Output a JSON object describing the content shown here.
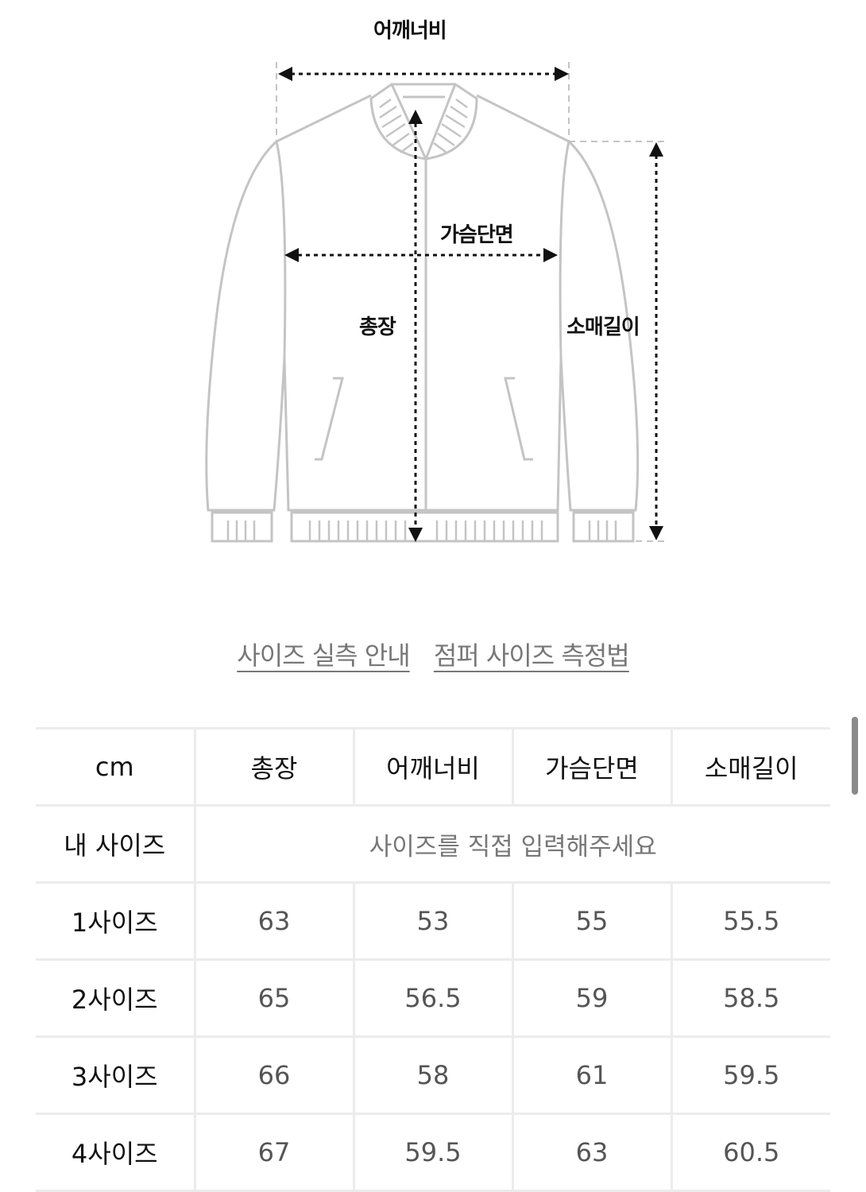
{
  "diagram": {
    "labels": {
      "shoulder": "어깨너비",
      "chest": "가슴단면",
      "length": "총장",
      "sleeve": "소매길이"
    },
    "line_color": "#c4c4c4",
    "arrow_color": "#111111"
  },
  "links": [
    {
      "label": "사이즈 실측 안내"
    },
    {
      "label": "점퍼 사이즈 측정법"
    }
  ],
  "table": {
    "headers": [
      "cm",
      "총장",
      "어깨너비",
      "가슴단면",
      "소매길이"
    ],
    "my_size": {
      "label": "내 사이즈",
      "placeholder": "사이즈를 직접 입력해주세요"
    },
    "rows": [
      {
        "size": "1사이즈",
        "values": [
          "63",
          "53",
          "55",
          "55.5"
        ]
      },
      {
        "size": "2사이즈",
        "values": [
          "65",
          "56.5",
          "59",
          "58.5"
        ]
      },
      {
        "size": "3사이즈",
        "values": [
          "66",
          "58",
          "61",
          "59.5"
        ]
      },
      {
        "size": "4사이즈",
        "values": [
          "67",
          "59.5",
          "63",
          "60.5"
        ]
      }
    ]
  }
}
